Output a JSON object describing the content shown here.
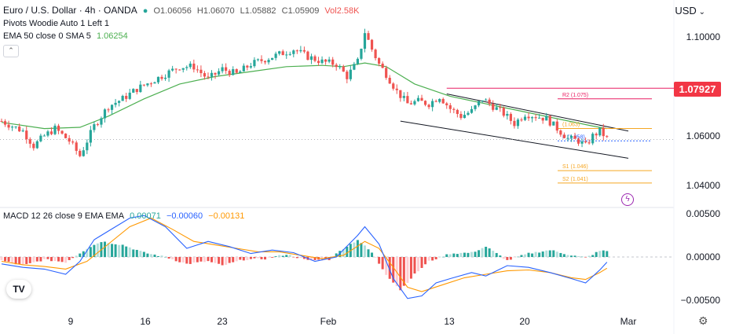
{
  "header": {
    "symbol_line": "Euro / U.S. Dollar · 4h · OANDA",
    "ohlc": {
      "o": "O1.06056",
      "h": "H1.06070",
      "l": "L1.05882",
      "c": "C1.05909",
      "vol": "Vol2.58K"
    },
    "pivots_label": "Pivots Woodie Auto 1 Left 1",
    "ema_label": "EMA 50 close 0 SMA 5",
    "ema_value": "1.06254",
    "currency": "USD",
    "last_price": "1.07927"
  },
  "macd_header": {
    "label": "MACD 12 26 close 9 EMA EMA",
    "hist": "0.00071",
    "macd": "−0.00060",
    "signal": "−0.00131"
  },
  "colors": {
    "up": "#26a69a",
    "down": "#ef5350",
    "ema": "#4caf50",
    "macd": "#2962ff",
    "signal": "#ff9800",
    "r2": "#e91e63",
    "pivot_levels": "#f5a623"
  },
  "chart_data": [
    {
      "type": "candlestick",
      "symbol": "EUR/USD",
      "timeframe": "4h",
      "x_ticks": [
        "9",
        "16",
        "23",
        "Feb",
        "13",
        "20",
        "Mar"
      ],
      "y_ticks": [
        "1.10000",
        "1.06000",
        "1.04000"
      ],
      "ylim": [
        1.034,
        1.107
      ],
      "close_path": [
        [
          0,
          1.066
        ],
        [
          6,
          1.062
        ],
        [
          9,
          1.056
        ],
        [
          12,
          1.06
        ],
        [
          15,
          1.063
        ],
        [
          19,
          1.058
        ],
        [
          22,
          1.052
        ],
        [
          26,
          1.064
        ],
        [
          30,
          1.072
        ],
        [
          34,
          1.075
        ],
        [
          38,
          1.079
        ],
        [
          42,
          1.082
        ],
        [
          46,
          1.085
        ],
        [
          50,
          1.088
        ],
        [
          54,
          1.088
        ],
        [
          58,
          1.083
        ],
        [
          62,
          1.087
        ],
        [
          66,
          1.085
        ],
        [
          70,
          1.089
        ],
        [
          74,
          1.091
        ],
        [
          78,
          1.093
        ],
        [
          82,
          1.095
        ],
        [
          86,
          1.092
        ],
        [
          90,
          1.09
        ],
        [
          94,
          1.089
        ],
        [
          97,
          1.084
        ],
        [
          100,
          1.09
        ],
        [
          102,
          1.102
        ],
        [
          104,
          1.095
        ],
        [
          106,
          1.089
        ],
        [
          108,
          1.085
        ],
        [
          111,
          1.078
        ],
        [
          114,
          1.073
        ],
        [
          117,
          1.074
        ],
        [
          120,
          1.073
        ],
        [
          123,
          1.076
        ],
        [
          126,
          1.071
        ],
        [
          129,
          1.068
        ],
        [
          132,
          1.07
        ],
        [
          135,
          1.075
        ],
        [
          138,
          1.072
        ],
        [
          141,
          1.069
        ],
        [
          144,
          1.065
        ],
        [
          147,
          1.069
        ],
        [
          150,
          1.068
        ],
        [
          153,
          1.067
        ],
        [
          156,
          1.063
        ],
        [
          159,
          1.059
        ],
        [
          162,
          1.058
        ],
        [
          164,
          1.056
        ],
        [
          166,
          1.06
        ],
        [
          168,
          1.062
        ],
        [
          170,
          1.059
        ]
      ],
      "ema50_path": [
        [
          0,
          1.0655
        ],
        [
          12,
          1.063
        ],
        [
          22,
          1.0635
        ],
        [
          30,
          1.068
        ],
        [
          40,
          1.075
        ],
        [
          50,
          1.081
        ],
        [
          60,
          1.084
        ],
        [
          70,
          1.086
        ],
        [
          80,
          1.088
        ],
        [
          90,
          1.0885
        ],
        [
          96,
          1.088
        ],
        [
          102,
          1.0895
        ],
        [
          108,
          1.088
        ],
        [
          116,
          1.081
        ],
        [
          126,
          1.076
        ],
        [
          136,
          1.073
        ],
        [
          146,
          1.07
        ],
        [
          156,
          1.067
        ],
        [
          166,
          1.064
        ],
        [
          170,
          1.063
        ]
      ],
      "pivots": [
        {
          "label": "R2",
          "value": 1.075,
          "text": "R2 (1.075)"
        },
        {
          "label": "R1",
          "value": 1.063,
          "text": "(1.063)"
        },
        {
          "label": "P",
          "value": 1.058,
          "text": "P (1.058)"
        },
        {
          "label": "S1",
          "value": 1.046,
          "text": "S1 (1.046)"
        },
        {
          "label": "S2",
          "value": 1.041,
          "text": "S2 (1.041)"
        }
      ],
      "horizontal_line": 1.07927,
      "channel_upper": [
        [
          125,
          1.077
        ],
        [
          176,
          1.062
        ]
      ],
      "channel_lower": [
        [
          112,
          1.066
        ],
        [
          176,
          1.051
        ]
      ]
    },
    {
      "type": "macd",
      "y_ticks": [
        "0.00500",
        "0.00000",
        "−0.00500"
      ],
      "ylim": [
        -0.0062,
        0.0062
      ],
      "hist": [
        [
          0,
          -0.0004
        ],
        [
          6,
          -0.001
        ],
        [
          12,
          -0.0003
        ],
        [
          18,
          -0.0006
        ],
        [
          24,
          0.001
        ],
        [
          28,
          0.0018
        ],
        [
          34,
          0.0014
        ],
        [
          40,
          0.0005
        ],
        [
          46,
          0.0
        ],
        [
          52,
          -0.0008
        ],
        [
          58,
          -0.0005
        ],
        [
          62,
          -0.001
        ],
        [
          68,
          -0.0003
        ],
        [
          74,
          -0.0002
        ],
        [
          80,
          0.0003
        ],
        [
          86,
          -0.0004
        ],
        [
          92,
          -0.0003
        ],
        [
          96,
          0.001
        ],
        [
          100,
          0.002
        ],
        [
          104,
          0.0005
        ],
        [
          108,
          -0.002
        ],
        [
          112,
          -0.0038
        ],
        [
          116,
          -0.002
        ],
        [
          120,
          -0.0005
        ],
        [
          126,
          0.0004
        ],
        [
          132,
          0.0005
        ],
        [
          136,
          0.0012
        ],
        [
          142,
          -0.0004
        ],
        [
          148,
          0.0004
        ],
        [
          154,
          0.0008
        ],
        [
          160,
          0.0002
        ],
        [
          164,
          -0.0001
        ],
        [
          168,
          0.0007
        ],
        [
          170,
          0.0007
        ]
      ],
      "macd_line": [
        [
          0,
          -0.0008
        ],
        [
          6,
          -0.0012
        ],
        [
          12,
          -0.0014
        ],
        [
          18,
          -0.002
        ],
        [
          22,
          -0.0005
        ],
        [
          26,
          0.002
        ],
        [
          30,
          0.003
        ],
        [
          36,
          0.0045
        ],
        [
          40,
          0.0048
        ],
        [
          46,
          0.0035
        ],
        [
          52,
          0.001
        ],
        [
          58,
          0.0018
        ],
        [
          64,
          0.0012
        ],
        [
          70,
          0.0004
        ],
        [
          76,
          0.0008
        ],
        [
          82,
          0.0005
        ],
        [
          88,
          -0.0005
        ],
        [
          94,
          0.0
        ],
        [
          100,
          0.0025
        ],
        [
          102,
          0.0035
        ],
        [
          106,
          0.0015
        ],
        [
          110,
          -0.0025
        ],
        [
          114,
          -0.0048
        ],
        [
          118,
          -0.0045
        ],
        [
          122,
          -0.003
        ],
        [
          126,
          -0.0025
        ],
        [
          132,
          -0.0018
        ],
        [
          136,
          -0.0022
        ],
        [
          142,
          -0.001
        ],
        [
          148,
          -0.0012
        ],
        [
          154,
          -0.0018
        ],
        [
          160,
          -0.0025
        ],
        [
          164,
          -0.003
        ],
        [
          168,
          -0.0015
        ],
        [
          170,
          -0.0006
        ]
      ],
      "signal_line": [
        [
          0,
          -0.0005
        ],
        [
          6,
          -0.0009
        ],
        [
          12,
          -0.0011
        ],
        [
          18,
          -0.0014
        ],
        [
          24,
          -0.0005
        ],
        [
          30,
          0.0015
        ],
        [
          36,
          0.0035
        ],
        [
          42,
          0.0045
        ],
        [
          48,
          0.0032
        ],
        [
          54,
          0.0018
        ],
        [
          60,
          0.0014
        ],
        [
          66,
          0.001
        ],
        [
          72,
          0.0006
        ],
        [
          78,
          0.0006
        ],
        [
          84,
          0.0002
        ],
        [
          90,
          -0.0002
        ],
        [
          96,
          0.0002
        ],
        [
          102,
          0.0018
        ],
        [
          106,
          0.001
        ],
        [
          110,
          -0.0012
        ],
        [
          114,
          -0.0035
        ],
        [
          118,
          -0.004
        ],
        [
          124,
          -0.0032
        ],
        [
          130,
          -0.0024
        ],
        [
          136,
          -0.002
        ],
        [
          142,
          -0.0016
        ],
        [
          148,
          -0.0015
        ],
        [
          154,
          -0.0018
        ],
        [
          160,
          -0.0024
        ],
        [
          164,
          -0.0026
        ],
        [
          168,
          -0.0018
        ],
        [
          170,
          -0.0013
        ]
      ]
    }
  ]
}
